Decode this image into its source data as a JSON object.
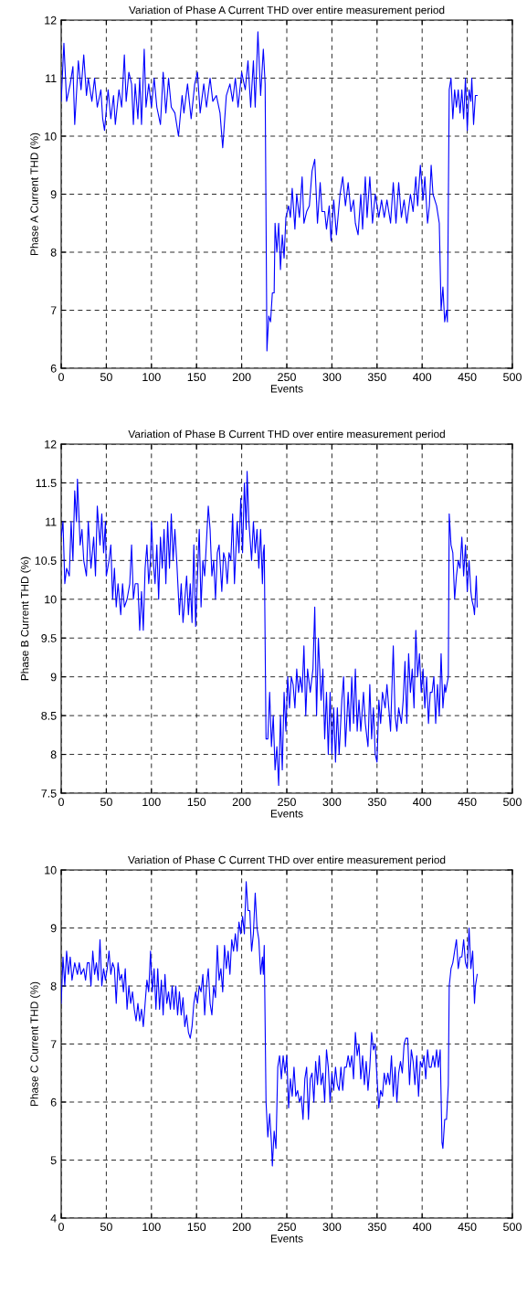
{
  "chart_data": [
    {
      "type": "line",
      "title": "Variation of Phase A Current THD over entire measurement period",
      "xlabel": "Events",
      "ylabel": "Phase A Current THD (%)",
      "xlim": [
        0,
        500
      ],
      "ylim": [
        6,
        12
      ],
      "xticks": [
        0,
        50,
        100,
        150,
        200,
        250,
        300,
        350,
        400,
        450,
        500
      ],
      "yticks": [
        6,
        7,
        8,
        9,
        10,
        11,
        12
      ],
      "grid": true,
      "series": [
        {
          "color": "#0000ff",
          "x": [
            0,
            3,
            6,
            10,
            13,
            15,
            19,
            22,
            25,
            28,
            30,
            34,
            37,
            40,
            44,
            46,
            48,
            52,
            55,
            58,
            60,
            64,
            67,
            70,
            72,
            75,
            78,
            80,
            82,
            85,
            87,
            89,
            92,
            94,
            97,
            100,
            103,
            106,
            110,
            113,
            116,
            119,
            122,
            126,
            130,
            134,
            136,
            140,
            144,
            148,
            151,
            154,
            158,
            161,
            165,
            168,
            172,
            176,
            179,
            183,
            187,
            190,
            193,
            196,
            200,
            204,
            207,
            210,
            213,
            215,
            218,
            221,
            224,
            226,
            228,
            230,
            232,
            234,
            236,
            237,
            239,
            241,
            243,
            245,
            247,
            249,
            252,
            254,
            256,
            259,
            261,
            264,
            267,
            269,
            272,
            275,
            278,
            281,
            284,
            287,
            289,
            292,
            294,
            297,
            299,
            302,
            305,
            309,
            312,
            315,
            318,
            321,
            324,
            326,
            329,
            332,
            334,
            337,
            339,
            342,
            345,
            348,
            352,
            355,
            358,
            361,
            365,
            368,
            371,
            374,
            377,
            380,
            383,
            387,
            390,
            393,
            395,
            398,
            401,
            403,
            406,
            408,
            410,
            412,
            416,
            419,
            421,
            423,
            425,
            427,
            428,
            430,
            432,
            434,
            436,
            438,
            440,
            442,
            444,
            446,
            448,
            450,
            452,
            454,
            455,
            457,
            459,
            461
          ],
          "values": [
            10.6,
            11.6,
            10.6,
            10.9,
            11.2,
            10.2,
            11.3,
            10.8,
            11.4,
            10.7,
            11.0,
            10.6,
            11.0,
            10.5,
            10.8,
            10.3,
            10.1,
            10.8,
            10.3,
            10.7,
            10.2,
            10.8,
            10.5,
            11.4,
            10.6,
            11.1,
            10.9,
            10.2,
            10.9,
            10.3,
            11.0,
            10.2,
            11.5,
            10.5,
            10.9,
            10.5,
            11.0,
            10.5,
            10.2,
            11.1,
            10.4,
            11.0,
            10.5,
            10.4,
            10.0,
            10.7,
            10.4,
            10.9,
            10.3,
            10.9,
            11.1,
            10.4,
            10.9,
            10.5,
            11.0,
            10.6,
            10.7,
            10.4,
            9.8,
            10.7,
            10.9,
            10.6,
            11.0,
            10.5,
            11.1,
            10.8,
            11.3,
            10.5,
            11.3,
            10.5,
            11.8,
            10.7,
            11.5,
            10.9,
            6.3,
            6.9,
            6.8,
            7.3,
            7.3,
            8.5,
            8.0,
            8.5,
            7.7,
            8.3,
            7.9,
            8.6,
            8.8,
            8.6,
            9.1,
            8.4,
            9.0,
            8.6,
            9.3,
            8.5,
            8.7,
            8.8,
            9.4,
            9.6,
            8.5,
            9.2,
            8.7,
            8.7,
            8.4,
            8.8,
            8.2,
            8.9,
            8.3,
            9.0,
            9.3,
            8.8,
            9.2,
            8.7,
            8.9,
            8.5,
            8.3,
            9.0,
            8.4,
            9.3,
            8.6,
            9.3,
            8.5,
            9.0,
            8.6,
            8.9,
            8.6,
            8.9,
            8.5,
            9.2,
            8.5,
            9.2,
            8.6,
            8.9,
            8.5,
            9.0,
            8.7,
            9.3,
            8.8,
            9.5,
            8.9,
            9.3,
            8.5,
            8.8,
            9.5,
            9.0,
            8.8,
            8.5,
            7.0,
            7.4,
            6.8,
            7.0,
            6.8,
            10.8,
            11.0,
            10.3,
            10.8,
            10.5,
            10.8,
            10.4,
            10.8,
            10.3,
            11.0,
            10.1,
            10.8,
            10.6,
            11.0,
            10.2,
            10.7,
            10.7
          ]
        }
      ]
    },
    {
      "type": "line",
      "title": "Variation of Phase B Current THD over entire measurement period",
      "xlabel": "Events",
      "ylabel": "Phase B Current THD (%)",
      "xlim": [
        0,
        500
      ],
      "ylim": [
        7.5,
        12
      ],
      "xticks": [
        0,
        50,
        100,
        150,
        200,
        250,
        300,
        350,
        400,
        450,
        500
      ],
      "yticks": [
        7.5,
        8,
        8.5,
        9,
        9.5,
        10,
        10.5,
        11,
        11.5,
        12
      ],
      "grid": true,
      "series": [
        {
          "color": "#0000ff",
          "x": [
            0,
            2,
            4,
            6,
            9,
            11,
            13,
            15,
            17,
            18,
            21,
            23,
            25,
            28,
            30,
            33,
            36,
            38,
            40,
            43,
            45,
            47,
            49,
            50,
            53,
            55,
            57,
            59,
            61,
            63,
            66,
            68,
            70,
            73,
            76,
            78,
            80,
            82,
            85,
            87,
            89,
            91,
            93,
            95,
            97,
            99,
            100,
            102,
            104,
            106,
            108,
            110,
            112,
            114,
            116,
            118,
            120,
            122,
            124,
            126,
            128,
            131,
            133,
            135,
            137,
            139,
            141,
            143,
            145,
            147,
            149,
            151,
            153,
            155,
            157,
            159,
            163,
            165,
            167,
            169,
            171,
            173,
            175,
            178,
            180,
            182,
            184,
            186,
            188,
            190,
            192,
            195,
            197,
            199,
            201,
            203,
            205,
            206,
            208,
            211,
            213,
            215,
            217,
            219,
            221,
            223,
            224,
            225,
            227,
            229,
            231,
            233,
            235,
            237,
            239,
            241,
            243,
            245,
            247,
            249,
            251,
            253,
            255,
            257,
            259,
            261,
            263,
            265,
            267,
            269,
            271,
            273,
            276,
            279,
            281,
            283,
            285,
            288,
            290,
            292,
            294,
            296,
            298,
            300,
            302,
            304,
            306,
            308,
            311,
            313,
            315,
            318,
            320,
            322,
            324,
            326,
            328,
            330,
            332,
            335,
            337,
            340,
            342,
            344,
            346,
            348,
            350,
            352,
            354,
            356,
            359,
            361,
            363,
            365,
            368,
            370,
            372,
            374,
            377,
            379,
            381,
            383,
            385,
            387,
            389,
            391,
            393,
            395,
            397,
            399,
            401,
            403,
            405,
            407,
            409,
            411,
            413,
            415,
            417,
            419,
            421,
            423,
            425,
            426,
            429,
            430,
            432,
            434,
            436,
            438,
            440,
            442,
            444,
            446,
            448,
            450,
            452,
            454,
            455,
            457,
            458,
            460,
            461
          ],
          "values": [
            10.8,
            11.0,
            10.2,
            10.4,
            10.3,
            11.0,
            10.5,
            11.4,
            11.0,
            11.55,
            10.7,
            10.9,
            10.5,
            10.3,
            11.0,
            10.4,
            10.8,
            10.3,
            11.2,
            10.7,
            11.1,
            10.6,
            11.0,
            10.3,
            10.5,
            10.7,
            10.0,
            10.4,
            9.9,
            10.2,
            9.8,
            10.2,
            9.9,
            10.0,
            10.2,
            10.7,
            10.0,
            10.2,
            10.2,
            9.6,
            10.1,
            9.6,
            10.4,
            10.7,
            10.2,
            10.5,
            11.0,
            10.5,
            10.2,
            10.7,
            10.0,
            10.8,
            10.4,
            10.9,
            10.2,
            11.0,
            10.4,
            11.1,
            10.5,
            10.9,
            10.5,
            9.8,
            10.2,
            9.7,
            10.0,
            10.3,
            9.8,
            10.2,
            9.7,
            10.7,
            9.65,
            10.3,
            10.9,
            9.9,
            10.5,
            10.3,
            11.2,
            10.9,
            10.3,
            10.5,
            10.0,
            10.6,
            10.7,
            10.1,
            10.6,
            10.5,
            10.2,
            10.6,
            10.5,
            11.1,
            10.2,
            11.0,
            10.6,
            11.3,
            10.6,
            11.5,
            10.9,
            11.65,
            11.0,
            10.5,
            11.0,
            10.6,
            10.9,
            10.4,
            10.9,
            10.2,
            10.6,
            10.7,
            8.2,
            8.2,
            8.8,
            8.1,
            8.5,
            7.8,
            8.1,
            7.6,
            8.5,
            7.8,
            8.8,
            8.3,
            9.0,
            8.6,
            9.0,
            8.9,
            8.6,
            9.1,
            8.8,
            9.0,
            8.8,
            9.4,
            8.5,
            9.1,
            8.8,
            9.1,
            9.9,
            8.5,
            9.5,
            8.7,
            9.1,
            8.2,
            8.8,
            8.0,
            8.8,
            8.0,
            8.6,
            7.9,
            8.6,
            8.0,
            8.7,
            9.0,
            8.1,
            8.8,
            8.3,
            9.0,
            8.4,
            9.1,
            8.3,
            8.7,
            8.3,
            8.8,
            8.4,
            8.1,
            8.9,
            8.2,
            8.6,
            8.0,
            7.9,
            8.7,
            8.4,
            8.8,
            8.6,
            8.9,
            8.6,
            8.3,
            9.4,
            8.5,
            8.3,
            8.6,
            8.4,
            8.7,
            9.2,
            8.4,
            9.3,
            8.8,
            9.1,
            8.6,
            9.6,
            9.0,
            9.3,
            8.8,
            9.1,
            8.6,
            9.0,
            8.4,
            8.8,
            8.8,
            9.0,
            8.4,
            8.9,
            8.5,
            9.3,
            8.6,
            8.9,
            8.8,
            9.0,
            11.1,
            10.7,
            10.6,
            10.0,
            10.3,
            10.5,
            10.4,
            10.8,
            10.3,
            10.7,
            10.1,
            10.5,
            10.1,
            10.0,
            9.9,
            9.8,
            10.3,
            9.9
          ]
        }
      ]
    },
    {
      "type": "line",
      "title": "Variation of Phase C Current THD over entire measurement period",
      "xlabel": "Events",
      "ylabel": "Phase C Current THD (%)",
      "xlim": [
        0,
        500
      ],
      "ylim": [
        4,
        10
      ],
      "xticks": [
        0,
        50,
        100,
        150,
        200,
        250,
        300,
        350,
        400,
        450,
        500
      ],
      "yticks": [
        4,
        5,
        6,
        7,
        8,
        9,
        10
      ],
      "grid": true,
      "series": [
        {
          "color": "#0000ff",
          "x": [
            0,
            2,
            4,
            6,
            8,
            10,
            12,
            15,
            18,
            20,
            22,
            25,
            27,
            29,
            31,
            33,
            35,
            37,
            39,
            41,
            43,
            45,
            47,
            49,
            51,
            53,
            55,
            57,
            59,
            61,
            63,
            65,
            67,
            69,
            71,
            73,
            75,
            77,
            79,
            81,
            83,
            85,
            87,
            89,
            91,
            93,
            95,
            97,
            99,
            101,
            103,
            105,
            107,
            109,
            111,
            113,
            115,
            117,
            119,
            121,
            123,
            125,
            127,
            129,
            131,
            133,
            135,
            137,
            139,
            141,
            143,
            145,
            147,
            149,
            151,
            153,
            155,
            157,
            159,
            161,
            163,
            165,
            167,
            169,
            171,
            173,
            175,
            177,
            179,
            181,
            183,
            185,
            187,
            189,
            191,
            193,
            195,
            197,
            199,
            201,
            203,
            205,
            207,
            209,
            211,
            213,
            215,
            217,
            219,
            221,
            223,
            224,
            225,
            227,
            229,
            231,
            233,
            234,
            236,
            238,
            240,
            242,
            244,
            246,
            248,
            250,
            252,
            254,
            256,
            258,
            260,
            262,
            264,
            266,
            268,
            270,
            272,
            274,
            276,
            278,
            280,
            282,
            284,
            286,
            288,
            290,
            292,
            294,
            296,
            298,
            300,
            302,
            304,
            306,
            308,
            310,
            312,
            314,
            316,
            318,
            320,
            322,
            324,
            326,
            328,
            330,
            332,
            334,
            336,
            338,
            340,
            342,
            344,
            346,
            348,
            350,
            352,
            354,
            356,
            358,
            360,
            362,
            364,
            366,
            368,
            370,
            372,
            374,
            376,
            378,
            380,
            382,
            384,
            386,
            388,
            390,
            392,
            394,
            396,
            398,
            400,
            402,
            404,
            406,
            408,
            410,
            412,
            414,
            416,
            418,
            420,
            422,
            423,
            425,
            427,
            429,
            430,
            432,
            434,
            436,
            438,
            440,
            442,
            444,
            446,
            448,
            450,
            452,
            454,
            456,
            458,
            459,
            461
          ],
          "values": [
            7.7,
            8.5,
            8.0,
            8.6,
            8.2,
            8.5,
            8.1,
            8.4,
            8.2,
            8.4,
            8.2,
            8.3,
            8.1,
            8.4,
            8.4,
            8.0,
            8.6,
            8.2,
            8.4,
            8.1,
            8.8,
            8.0,
            8.3,
            8.1,
            8.3,
            8.6,
            8.2,
            8.4,
            8.3,
            7.7,
            8.4,
            8.1,
            8.2,
            7.9,
            8.3,
            7.6,
            8.0,
            7.7,
            7.9,
            7.6,
            7.4,
            7.7,
            7.4,
            7.6,
            7.3,
            7.7,
            8.1,
            7.9,
            8.6,
            7.9,
            8.3,
            7.6,
            8.3,
            7.6,
            8.1,
            7.5,
            8.2,
            7.7,
            7.9,
            7.6,
            8.0,
            7.6,
            8.0,
            7.5,
            7.9,
            7.5,
            7.8,
            7.3,
            7.5,
            7.2,
            7.1,
            7.3,
            7.7,
            7.9,
            7.7,
            8.0,
            7.9,
            8.2,
            7.5,
            8.0,
            8.3,
            7.7,
            7.5,
            8.0,
            7.8,
            8.7,
            8.1,
            8.3,
            7.9,
            8.7,
            8.3,
            8.6,
            8.2,
            8.8,
            8.6,
            8.9,
            8.6,
            9.1,
            8.9,
            9.2,
            8.9,
            9.8,
            9.3,
            9.3,
            8.6,
            8.9,
            9.6,
            9.0,
            8.8,
            8.2,
            8.5,
            8.2,
            8.7,
            6.0,
            5.4,
            5.8,
            5.3,
            4.9,
            5.5,
            5.2,
            6.6,
            6.8,
            6.4,
            6.8,
            6.5,
            6.8,
            5.9,
            6.4,
            6.1,
            6.6,
            6.1,
            6.2,
            6.0,
            6.1,
            5.7,
            6.4,
            6.6,
            5.7,
            6.4,
            6.5,
            6.0,
            6.7,
            6.3,
            6.8,
            6.3,
            6.5,
            6.0,
            6.9,
            6.6,
            6.0,
            6.5,
            6.2,
            6.6,
            6.3,
            6.2,
            6.6,
            6.2,
            6.6,
            6.6,
            6.8,
            6.6,
            6.8,
            6.4,
            7.2,
            6.8,
            7.0,
            6.4,
            6.8,
            6.3,
            6.7,
            6.2,
            6.6,
            7.2,
            6.9,
            7.0,
            6.4,
            5.9,
            6.2,
            6.1,
            6.5,
            6.3,
            6.5,
            6.3,
            6.8,
            6.1,
            6.6,
            6.0,
            6.5,
            6.7,
            6.5,
            7.0,
            7.1,
            7.1,
            6.3,
            6.9,
            6.7,
            6.3,
            6.8,
            6.1,
            6.7,
            6.6,
            6.8,
            6.4,
            6.9,
            6.6,
            6.6,
            6.8,
            6.6,
            6.9,
            6.6,
            6.9,
            5.3,
            5.2,
            5.7,
            5.7,
            6.3,
            8.0,
            8.3,
            8.4,
            8.6,
            8.8,
            8.3,
            8.5,
            8.5,
            8.8,
            8.4,
            8.3,
            9.0,
            8.3,
            8.6,
            7.7,
            8.0,
            8.2
          ]
        }
      ]
    }
  ]
}
